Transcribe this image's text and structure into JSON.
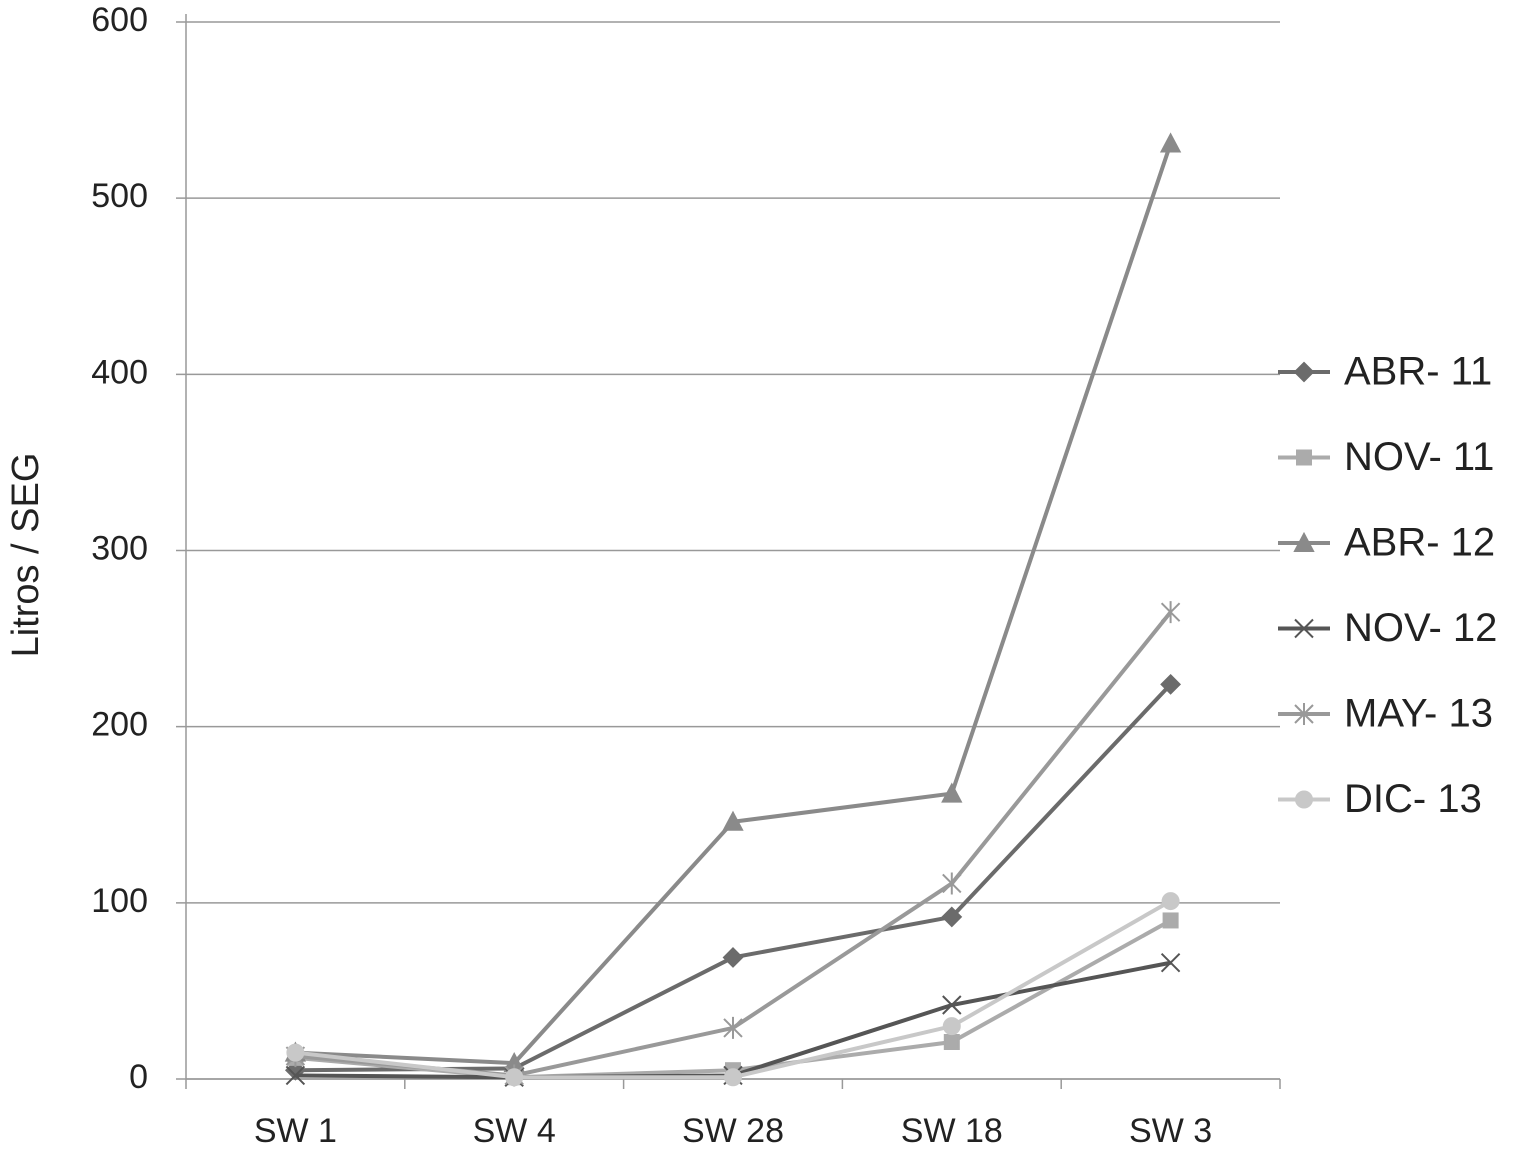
{
  "chart_data": {
    "type": "line",
    "y_label": "Litros / SEG",
    "categories": [
      "SW 1",
      "SW 4",
      "SW 28",
      "SW 18",
      "SW 3"
    ],
    "series": [
      {
        "name": "ABR- 11",
        "color": "#6b6b6b",
        "marker": "diamond",
        "values": [
          5,
          6,
          69,
          92,
          224
        ]
      },
      {
        "name": "NOV- 11",
        "color": "#ababab",
        "marker": "square",
        "values": [
          12,
          1,
          5,
          21,
          90
        ]
      },
      {
        "name": "ABR- 12",
        "color": "#8a8a8a",
        "marker": "triangle",
        "values": [
          15,
          9,
          146,
          162,
          531
        ]
      },
      {
        "name": "NOV- 12",
        "color": "#555555",
        "marker": "x",
        "values": [
          2,
          1,
          2,
          42,
          66
        ]
      },
      {
        "name": "MAY- 13",
        "color": "#999999",
        "marker": "star",
        "values": [
          13,
          2,
          29,
          111,
          265
        ]
      },
      {
        "name": "DIC- 13",
        "color": "#c8c8c8",
        "marker": "circle",
        "values": [
          15,
          1,
          1,
          30,
          101
        ]
      }
    ],
    "ylim": [
      0,
      600
    ],
    "yticks": [
      0,
      100,
      200,
      300,
      400,
      500,
      600
    ],
    "grid": true,
    "legend": "right"
  }
}
